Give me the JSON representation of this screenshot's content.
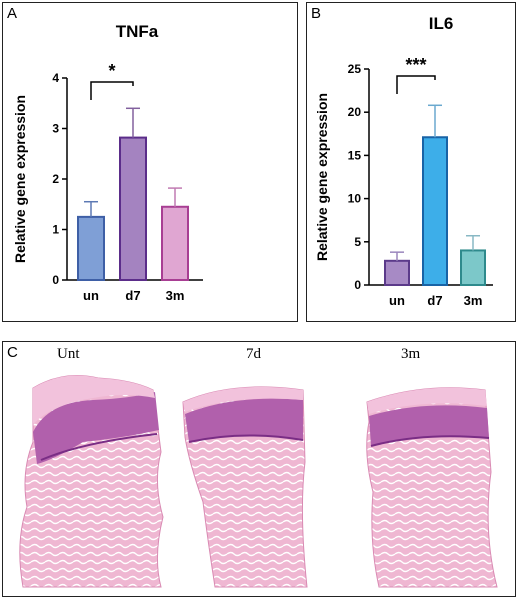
{
  "panels": {
    "a": {
      "letter": "A"
    },
    "b": {
      "letter": "B"
    },
    "c": {
      "letter": "C"
    }
  },
  "histology": {
    "labels": [
      "Unt",
      "7d",
      "3m"
    ]
  },
  "colors": {
    "tnfa": [
      "#7f9fd6",
      "#a483c0",
      "#e0a6d2"
    ],
    "tnfa_edge": [
      "#3e5fa6",
      "#5b2d8a",
      "#a83e93"
    ],
    "tnfa_err": [
      "#5c79b4",
      "#82609e",
      "#c07ab2"
    ],
    "il6": [
      "#a78ac5",
      "#3daee9",
      "#7cc8c9"
    ],
    "il6_edge": [
      "#5b3a8a",
      "#1863a6",
      "#2e8a8c"
    ],
    "il6_err": [
      "#9a86bc",
      "#6aa9cf",
      "#88b8c4"
    ],
    "tissue_pink": "#e89ac0",
    "epidermis": "#9a4a9e"
  },
  "chart_data": [
    {
      "type": "bar",
      "title": "TNFa",
      "ylabel": "Relative gene expression",
      "categories": [
        "un",
        "d7",
        "3m"
      ],
      "values": [
        1.25,
        2.82,
        1.45
      ],
      "errors": [
        0.3,
        0.58,
        0.37
      ],
      "ylim": [
        0,
        4
      ],
      "yticks": [
        0,
        1,
        2,
        3,
        4
      ],
      "significance": {
        "from": 0,
        "to": 1,
        "label": "*"
      }
    },
    {
      "type": "bar",
      "title": "IL6",
      "ylabel": "Relative gene expression",
      "categories": [
        "un",
        "d7",
        "3m"
      ],
      "values": [
        2.8,
        17.1,
        4.0
      ],
      "errors": [
        1.0,
        3.7,
        1.7
      ],
      "ylim": [
        0,
        25
      ],
      "yticks": [
        0,
        5,
        10,
        15,
        20,
        25
      ],
      "significance": {
        "from": 0,
        "to": 1,
        "label": "***"
      }
    }
  ]
}
